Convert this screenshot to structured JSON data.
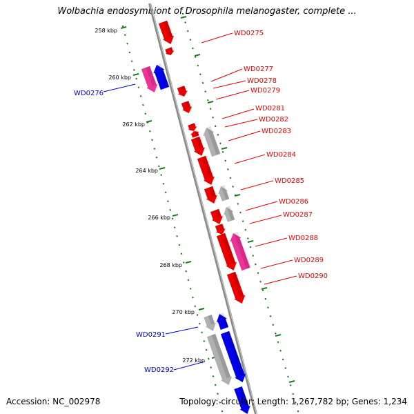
{
  "title": "Wolbachia endosymbiont of Drosophila melanogaster, complete ...",
  "footer": {
    "accession": "Accession: NC_002978",
    "summary": "Topology: circular; Length: 1,267,782 bp; Genes: 1,234"
  },
  "colors": {
    "backbone": "#888888",
    "ruler": "#1a7a1a",
    "gene_red": "#ee0000",
    "gene_pink": "#ee3399",
    "gene_blue": "#0000ee",
    "gene_gray": "#b0b0b0",
    "label_red": "#dd0000",
    "label_blue": "#0000cc"
  },
  "ruler_ticks": [
    "258 kbp",
    "260 kbp",
    "262 kbp",
    "264 kbp",
    "266 kbp",
    "268 kbp",
    "270 kbp",
    "272 kbp"
  ],
  "gene_labels": [
    {
      "label": "WD0275",
      "color": "red"
    },
    {
      "label": "WD0276",
      "color": "blue"
    },
    {
      "label": "WD0277",
      "color": "red"
    },
    {
      "label": "WD0278",
      "color": "red"
    },
    {
      "label": "WD0279",
      "color": "red"
    },
    {
      "label": "WD0281",
      "color": "red"
    },
    {
      "label": "WD0282",
      "color": "red"
    },
    {
      "label": "WD0283",
      "color": "red"
    },
    {
      "label": "WD0284",
      "color": "red"
    },
    {
      "label": "WD0285",
      "color": "red"
    },
    {
      "label": "WD0286",
      "color": "red"
    },
    {
      "label": "WD0287",
      "color": "red"
    },
    {
      "label": "WD0288",
      "color": "red"
    },
    {
      "label": "WD0289",
      "color": "red"
    },
    {
      "label": "WD0290",
      "color": "red"
    },
    {
      "label": "WD0291",
      "color": "blue"
    },
    {
      "label": "WD0292",
      "color": "blue"
    }
  ]
}
